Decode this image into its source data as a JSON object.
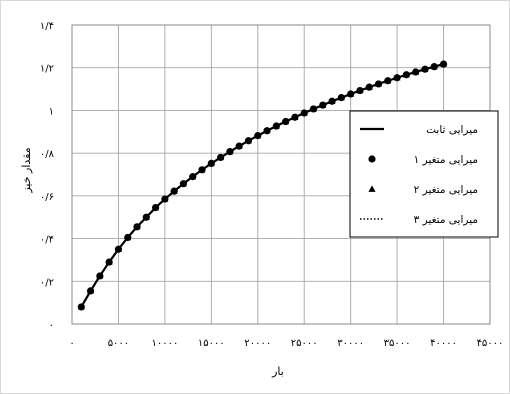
{
  "chart_data": {
    "type": "line",
    "title": "",
    "xlabel": "بار",
    "ylabel": "مقدار خیز",
    "xlim": [
      0,
      45000
    ],
    "ylim": [
      0,
      1.4
    ],
    "grid": true,
    "legend_position": "right",
    "x_ticks": [
      0,
      5000,
      10000,
      15000,
      20000,
      25000,
      30000,
      35000,
      40000,
      45000
    ],
    "x_tick_labels": [
      "۰",
      "۵۰۰۰",
      "۱۰۰۰۰",
      "۱۵۰۰۰",
      "۲۰۰۰۰",
      "۲۵۰۰۰",
      "۳۰۰۰۰",
      "۳۵۰۰۰",
      "۴۰۰۰۰",
      "۴۵۰۰۰"
    ],
    "y_ticks": [
      0,
      0.2,
      0.4,
      0.6,
      0.8,
      1.0,
      1.2,
      1.4
    ],
    "y_tick_labels": [
      "۰",
      "۰/۲",
      "۰/۴",
      "۰/۶",
      "۰/۸",
      "۱",
      "۱/۲",
      "۱/۴"
    ],
    "x": [
      1000,
      2000,
      3000,
      4000,
      5000,
      6000,
      7000,
      8000,
      9000,
      10000,
      11000,
      12000,
      13000,
      14000,
      15000,
      16000,
      17000,
      18000,
      19000,
      20000,
      21000,
      22000,
      23000,
      24000,
      25000,
      26000,
      27000,
      28000,
      29000,
      30000,
      31000,
      32000,
      33000,
      34000,
      35000,
      36000,
      37000,
      38000,
      39000,
      40000
    ],
    "series": [
      {
        "name": "میرایی ثابت",
        "style": "solid-line",
        "values": [
          0.08,
          0.155,
          0.225,
          0.29,
          0.35,
          0.405,
          0.455,
          0.5,
          0.545,
          0.585,
          0.622,
          0.657,
          0.69,
          0.722,
          0.752,
          0.78,
          0.807,
          0.833,
          0.858,
          0.882,
          0.905,
          0.927,
          0.948,
          0.968,
          0.988,
          1.007,
          1.025,
          1.043,
          1.06,
          1.077,
          1.093,
          1.109,
          1.124,
          1.139,
          1.153,
          1.167,
          1.18,
          1.193,
          1.205,
          1.217
        ]
      },
      {
        "name": "میرایی متغیر ۱",
        "style": "circle-markers",
        "values": [
          0.08,
          0.155,
          0.225,
          0.29,
          0.35,
          0.405,
          0.455,
          0.5,
          0.545,
          0.585,
          0.622,
          0.657,
          0.69,
          0.722,
          0.752,
          0.78,
          0.807,
          0.833,
          0.858,
          0.882,
          0.905,
          0.927,
          0.948,
          0.968,
          0.988,
          1.007,
          1.025,
          1.043,
          1.06,
          1.077,
          1.093,
          1.109,
          1.124,
          1.139,
          1.153,
          1.167,
          1.18,
          1.193,
          1.205,
          1.217
        ]
      },
      {
        "name": "میرایی متغیر ۲",
        "style": "triangle-markers",
        "values": [
          0.08,
          0.155,
          0.225,
          0.29,
          0.35,
          0.405,
          0.455,
          0.5,
          0.545,
          0.585,
          0.622,
          0.657,
          0.69,
          0.722,
          0.752,
          0.78,
          0.807,
          0.833,
          0.858,
          0.882,
          0.905,
          0.927,
          0.948,
          0.968,
          0.988,
          1.007,
          1.025,
          1.043,
          1.06,
          1.077,
          1.093,
          1.109,
          1.124,
          1.139,
          1.153,
          1.167,
          1.18,
          1.193,
          1.205,
          1.217
        ]
      },
      {
        "name": "میرایی متغیر ۳",
        "style": "dotted-line",
        "values": [
          0.08,
          0.155,
          0.225,
          0.29,
          0.35,
          0.405,
          0.455,
          0.5,
          0.545,
          0.585,
          0.622,
          0.657,
          0.69,
          0.722,
          0.752,
          0.78,
          0.807,
          0.833,
          0.858,
          0.882,
          0.905,
          0.927,
          0.948,
          0.968,
          0.988,
          1.007,
          1.025,
          1.043,
          1.06,
          1.077,
          1.093,
          1.109,
          1.124,
          1.139,
          1.153,
          1.167,
          1.18,
          1.193,
          1.205,
          1.217
        ]
      }
    ],
    "colors": {
      "series": "#000000",
      "grid": "#a6a6a6",
      "frame": "#888888"
    }
  }
}
